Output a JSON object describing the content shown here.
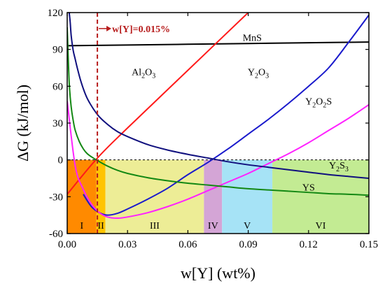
{
  "chart_data": {
    "type": "line",
    "xlabel": "w[Y] (wt%)",
    "ylabel": "ΔG (kJ/mol)",
    "xlim": [
      0,
      0.15
    ],
    "ylim": [
      -60,
      120
    ],
    "xticks": [
      "0.00",
      "0.03",
      "0.06",
      "0.09",
      "0.12",
      "0.15"
    ],
    "yticks": [
      "-60",
      "-30",
      "0",
      "30",
      "60",
      "90",
      "120"
    ],
    "zero_line": "dashed",
    "vline": {
      "x": 0.015,
      "label": "w[Y]=0.015%",
      "color": "#b71c1c"
    },
    "regions": [
      {
        "label": "I",
        "x0": 0.0,
        "x1": 0.0145,
        "color": "#ff8a00"
      },
      {
        "label": "II",
        "x0": 0.0145,
        "x1": 0.019,
        "color": "#ffc400"
      },
      {
        "label": "III",
        "x0": 0.019,
        "x1": 0.068,
        "color": "#eded96"
      },
      {
        "label": "IV",
        "x0": 0.068,
        "x1": 0.077,
        "color": "#d4a5d6"
      },
      {
        "label": "V",
        "x0": 0.077,
        "x1": 0.102,
        "color": "#a6e3f6"
      },
      {
        "label": "VI",
        "x0": 0.102,
        "x1": 0.15,
        "color": "#c3eb93"
      }
    ],
    "series": [
      {
        "name": "MnS",
        "color": "#000000",
        "x": [
          0.0,
          0.03,
          0.06,
          0.09,
          0.12,
          0.15
        ],
        "y": [
          93.0,
          93.6,
          94.2,
          94.8,
          95.4,
          96.0
        ]
      },
      {
        "name": "Al2O3",
        "color": "#ff1a1a",
        "x": [
          0.0,
          0.015,
          0.03,
          0.06,
          0.09
        ],
        "y": [
          -28.0,
          1.5,
          26.0,
          73.0,
          120.0
        ]
      },
      {
        "name": "Y2O3",
        "color": "#1a1acc",
        "x": [
          0.008,
          0.012,
          0.016,
          0.02,
          0.025,
          0.03,
          0.04,
          0.05,
          0.06,
          0.07,
          0.08,
          0.09,
          0.1,
          0.11,
          0.12,
          0.13,
          0.14,
          0.15
        ],
        "y": [
          -28.0,
          -38.0,
          -43.0,
          -45.0,
          -43.5,
          -40.0,
          -32.0,
          -23.0,
          -12.0,
          -2.0,
          9.0,
          21.0,
          33.0,
          46.0,
          60.0,
          75.0,
          96.0,
          118.0
        ]
      },
      {
        "name": "Y2O2S",
        "color": "#ff22ff",
        "x": [
          0.0,
          0.004,
          0.008,
          0.012,
          0.016,
          0.02,
          0.025,
          0.03,
          0.04,
          0.05,
          0.06,
          0.07,
          0.08,
          0.09,
          0.1,
          0.11,
          0.12,
          0.13,
          0.14,
          0.15
        ],
        "y": [
          48.0,
          -5.0,
          -24.0,
          -36.0,
          -43.0,
          -46.5,
          -47.5,
          -46.5,
          -43.0,
          -38.0,
          -32.0,
          -25.0,
          -18.0,
          -11.0,
          -3.0,
          5.0,
          14.0,
          24.0,
          34.0,
          45.0
        ]
      },
      {
        "name": "Y2S3",
        "color": "#10107e",
        "x": [
          0.001,
          0.0015,
          0.002,
          0.003,
          0.004,
          0.005,
          0.007,
          0.01,
          0.015,
          0.02,
          0.025,
          0.03,
          0.04,
          0.05,
          0.06,
          0.07,
          0.08,
          0.09,
          0.1,
          0.11,
          0.12,
          0.13,
          0.14,
          0.15
        ],
        "y": [
          120.0,
          112.0,
          101.0,
          89.0,
          82.0,
          75.0,
          63.0,
          50.0,
          37.0,
          29.0,
          23.0,
          19.0,
          12.5,
          8.0,
          4.5,
          1.5,
          -1.5,
          -4.0,
          -6.0,
          -8.0,
          -10.0,
          -12.0,
          -13.5,
          -15.0
        ]
      },
      {
        "name": "YS",
        "color": "#138813",
        "x": [
          0.0,
          0.001,
          0.002,
          0.003,
          0.004,
          0.006,
          0.008,
          0.01,
          0.013,
          0.015,
          0.02,
          0.025,
          0.03,
          0.04,
          0.05,
          0.06,
          0.07,
          0.08,
          0.09,
          0.1,
          0.11,
          0.12,
          0.13,
          0.14,
          0.15
        ],
        "y": [
          108.0,
          63.0,
          43.0,
          32.0,
          24.0,
          15.0,
          9.0,
          5.0,
          1.5,
          -0.5,
          -5.0,
          -8.5,
          -11.0,
          -14.5,
          -17.0,
          -19.0,
          -20.5,
          -22.0,
          -23.5,
          -24.5,
          -25.5,
          -26.5,
          -27.5,
          -28.0,
          -28.8
        ]
      }
    ],
    "series_labels": [
      {
        "series": "MnS",
        "main": "MnS",
        "x": 0.092,
        "y": 97
      },
      {
        "series": "Al2O3",
        "main": "Al",
        "sub1": "2",
        "mid": "O",
        "sub2": "3",
        "x": 0.038,
        "y": 69
      },
      {
        "series": "Y2O3",
        "main": "Y",
        "sub1": "2",
        "mid": "O",
        "sub2": "3",
        "x": 0.095,
        "y": 69
      },
      {
        "series": "Y2O2S",
        "main": "Y",
        "sub1": "2",
        "mid": "O",
        "sub2": "2",
        "tail": "S",
        "x": 0.125,
        "y": 45
      },
      {
        "series": "Y2S3",
        "main": "Y",
        "sub1": "2",
        "mid": "S",
        "sub2": "3",
        "x": 0.135,
        "y": -7
      },
      {
        "series": "YS",
        "main": "YS",
        "x": 0.12,
        "y": -25
      }
    ]
  }
}
